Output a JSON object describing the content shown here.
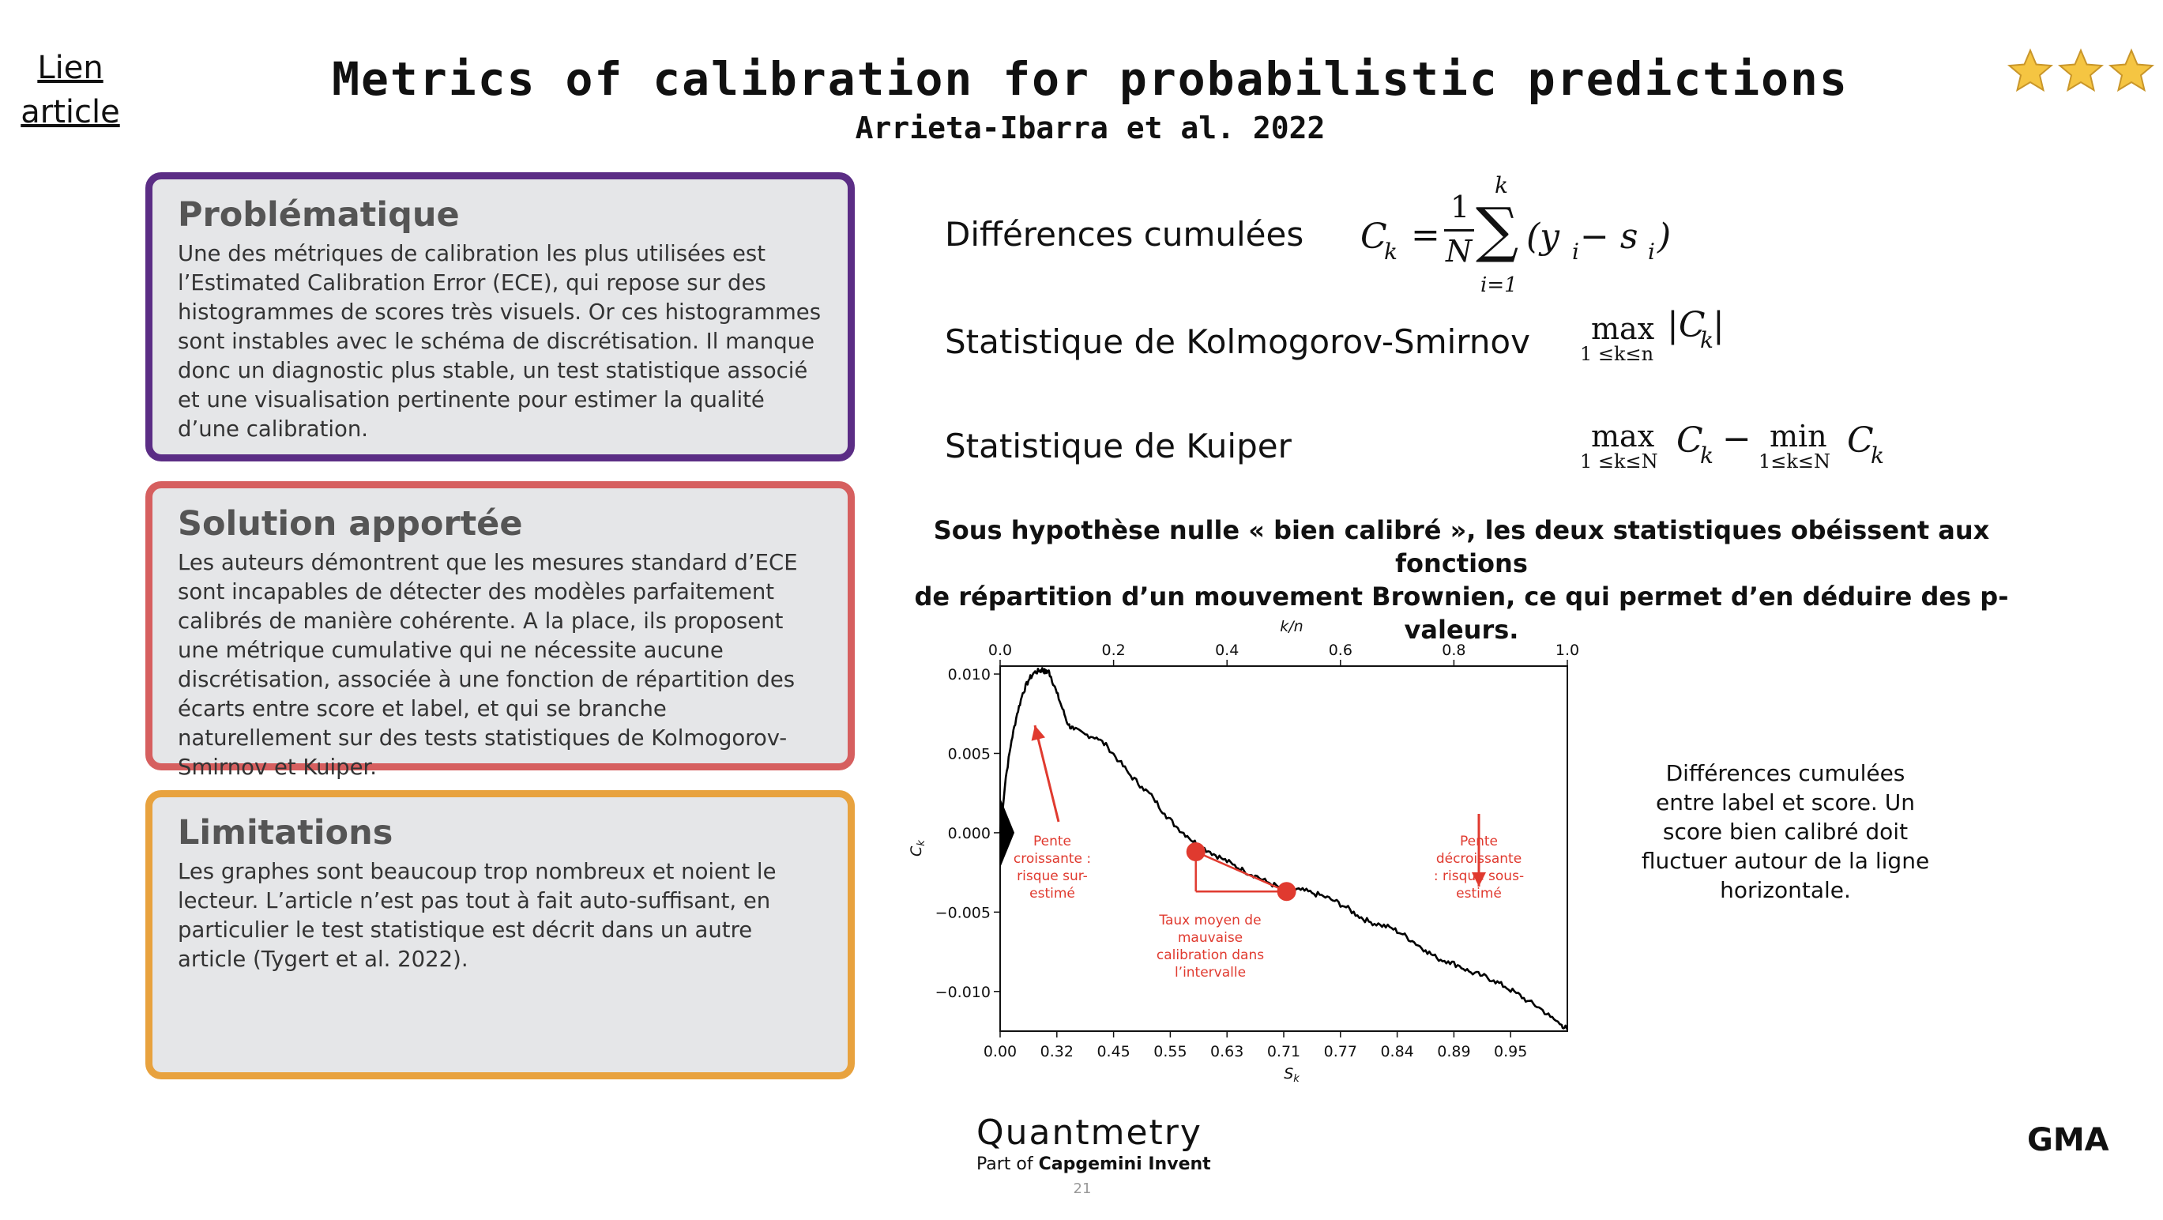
{
  "header": {
    "link_line1": "Lien",
    "link_line2": "article",
    "title": "Metrics of calibration for probabilistic predictions",
    "subtitle": "Arrieta-Ibarra et al. 2022",
    "rating_stars": 3,
    "star_color": "#f5c542"
  },
  "boxes": [
    {
      "heading": "Problématique",
      "body": "Une des métriques de calibration les plus utilisées est l’Estimated Calibration Error (ECE), qui repose sur des histogrammes de scores très visuels. Or ces histogrammes sont instables avec le schéma de discrétisation. Il manque donc un diagnostic plus stable, un test statistique associé et une visualisation pertinente pour estimer la qualité d’une calibration.",
      "color": "#5b2d85"
    },
    {
      "heading": "Solution apportée",
      "body": "Les auteurs démontrent que les mesures standard d’ECE sont incapables de détecter des modèles parfaitement calibrés de manière cohérente. A la place, ils proposent une métrique cumulative qui ne nécessite aucune discrétisation, associée à une fonction de répartition des écarts entre score et label, et qui se branche naturellement sur des tests statistiques de Kolmogorov-Smirnov et Kuiper.",
      "color": "#d65f5f"
    },
    {
      "heading": "Limitations",
      "body": "Les graphes sont beaucoup trop nombreux et noient le lecteur. L’article n’est pas tout à fait auto-suffisant, en particulier le test statistique est décrit dans un autre article (Tygert et al. 2022).",
      "color": "#e8a23e"
    }
  ],
  "formulas": {
    "f1_label": "Différences cumulées",
    "f2_label": "Statistique de Kolmogorov-Smirnov",
    "f3_label": "Statistique de Kuiper",
    "ck": "C",
    "k_sub": "k",
    "i_sub": "i",
    "eq": "=",
    "one": "1",
    "N": "N",
    "sigma": "∑",
    "sum_top": "k",
    "sum_bottom": "i=1",
    "paren_open": "(y",
    "minus_s": " − s",
    "paren_close": ")",
    "max": "max",
    "min": "min",
    "range_n": "1 ≤k≤n",
    "range_N1": "1 ≤k≤N",
    "range_N2": "1≤k≤N",
    "abs_open": "|C",
    "abs_close": "|",
    "minus": "−"
  },
  "note": {
    "line1": "Sous hypothèse nulle « bien calibré », les deux statistiques obéissent aux fonctions",
    "line2": "de répartition d’un mouvement Brownien, ce qui permet d’en déduire des p-valeurs."
  },
  "chart_data": {
    "type": "line",
    "top_axis": {
      "label": "k/n",
      "ticks": [
        "0.0",
        "0.2",
        "0.4",
        "0.6",
        "0.8",
        "1.0"
      ],
      "range": [
        0,
        1
      ]
    },
    "bottom_axis": {
      "label": "S",
      "label_sub": "k",
      "ticks": [
        "0.00",
        "0.32",
        "0.45",
        "0.55",
        "0.63",
        "0.71",
        "0.77",
        "0.84",
        "0.89",
        "0.95"
      ]
    },
    "y_axis": {
      "label": "C",
      "label_sub": "k",
      "ticks": [
        "0.010",
        "0.005",
        "0.000",
        "−0.005",
        "−0.010"
      ],
      "range": [
        -0.0125,
        0.0105
      ]
    },
    "series": [
      {
        "x": [
          0,
          0.01,
          0.02,
          0.03,
          0.04,
          0.05,
          0.06,
          0.07,
          0.075,
          0.08,
          0.085,
          0.09,
          0.1,
          0.11,
          0.12,
          0.13,
          0.15,
          0.17,
          0.19,
          0.21,
          0.23,
          0.25,
          0.27,
          0.29,
          0.31,
          0.33,
          0.35,
          0.37,
          0.39,
          0.41,
          0.43,
          0.45,
          0.47,
          0.49,
          0.51,
          0.53,
          0.55,
          0.57,
          0.59,
          0.61,
          0.63,
          0.65,
          0.67,
          0.69,
          0.71,
          0.73,
          0.75,
          0.77,
          0.79,
          0.81,
          0.83,
          0.85,
          0.87,
          0.89,
          0.91,
          0.93,
          0.95,
          0.97,
          0.99,
          1.0
        ],
        "y": [
          0.0,
          0.0035,
          0.0058,
          0.0075,
          0.0088,
          0.0096,
          0.0101,
          0.0102,
          0.0103,
          0.0101,
          0.0102,
          0.0098,
          0.0088,
          0.0078,
          0.0068,
          0.0065,
          0.0062,
          0.006,
          0.0054,
          0.0045,
          0.0036,
          0.0029,
          0.0022,
          0.0012,
          0.0004,
          -0.0002,
          -0.0008,
          -0.0012,
          -0.0016,
          -0.002,
          -0.0024,
          -0.0027,
          -0.0031,
          -0.0034,
          -0.0036,
          -0.0036,
          -0.0038,
          -0.004,
          -0.0043,
          -0.0047,
          -0.0052,
          -0.0056,
          -0.0058,
          -0.006,
          -0.0064,
          -0.0069,
          -0.0074,
          -0.0079,
          -0.0081,
          -0.0084,
          -0.0088,
          -0.009,
          -0.0093,
          -0.0097,
          -0.0101,
          -0.0106,
          -0.011,
          -0.0116,
          -0.0121,
          -0.0124
        ]
      }
    ],
    "annotations": [
      {
        "text_lines": [
          "Pente",
          "croissante :",
          "risque sur-",
          "estimé"
        ],
        "color": "#e03a2f"
      },
      {
        "text_lines": [
          "Taux moyen de",
          "mauvaise",
          "calibration dans",
          "l’intervalle"
        ],
        "color": "#e03a2f"
      },
      {
        "text_lines": [
          "Pente",
          "décroissante",
          ": risque sous-",
          "estimé"
        ],
        "color": "#e03a2f"
      }
    ],
    "markers": [
      {
        "x": 0.345,
        "y": -0.0012
      },
      {
        "x": 0.505,
        "y": -0.0037
      }
    ]
  },
  "side_text": "Différences cumulées entre label et score. Un score bien calibré doit fluctuer autour de la ligne horizontale.",
  "footer": {
    "logo_main": "Quantmetry",
    "logo_part": "Part of",
    "logo_company": "Capgemini Invent",
    "page_number": "21",
    "initials": "GMA"
  }
}
